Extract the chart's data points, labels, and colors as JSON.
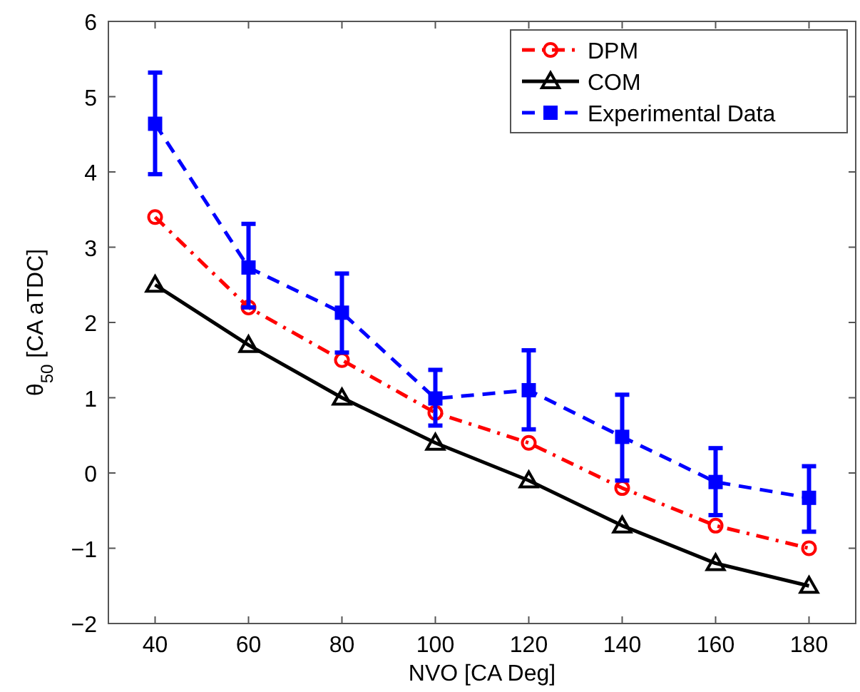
{
  "chart_data": {
    "type": "line",
    "xlabel": "NVO [CA Deg]",
    "ylabel": "θ$_{50}$ [CA aTDC]",
    "x": [
      40,
      60,
      80,
      100,
      120,
      140,
      160,
      180
    ],
    "xlim": [
      30,
      190
    ],
    "xticks": [
      40,
      60,
      80,
      100,
      120,
      140,
      160,
      180
    ],
    "ylim": [
      -2,
      6
    ],
    "yticks": [
      -2,
      -1,
      0,
      1,
      2,
      3,
      4,
      5,
      6
    ],
    "grid": false,
    "legend": "top right",
    "series": [
      {
        "name": "DPM",
        "color": "#ff0000",
        "marker": "circle",
        "line_style": "dashdot",
        "values": [
          3.4,
          2.2,
          1.5,
          0.8,
          0.4,
          -0.2,
          -0.7,
          -1.0
        ]
      },
      {
        "name": "COM",
        "color": "#000000",
        "marker": "triangle",
        "line_style": "solid",
        "values": [
          2.5,
          1.7,
          1.0,
          0.4,
          -0.1,
          -0.7,
          -1.2,
          -1.5
        ]
      },
      {
        "name": "Experimental Data",
        "color": "#0000ff",
        "marker": "square",
        "line_style": "dashed",
        "values": [
          4.64,
          2.73,
          2.13,
          0.99,
          1.1,
          0.48,
          -0.12,
          -0.33
        ],
        "errors": [
          [
            3.97,
            5.32
          ],
          [
            2.2,
            3.31
          ],
          [
            1.6,
            2.65
          ],
          [
            0.63,
            1.37
          ],
          [
            0.58,
            1.63
          ],
          [
            -0.1,
            1.04
          ],
          [
            -0.56,
            0.33
          ],
          [
            -0.78,
            0.09
          ]
        ]
      }
    ]
  }
}
